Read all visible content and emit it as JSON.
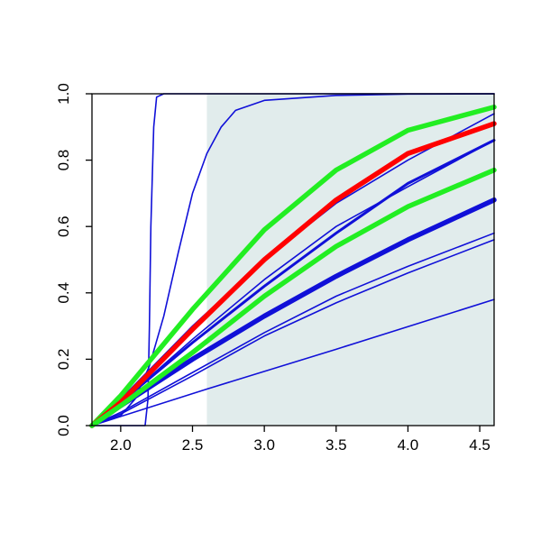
{
  "chart_data": {
    "type": "line",
    "title": "",
    "xlabel": "",
    "ylabel": "",
    "xlim": [
      1.8,
      4.6
    ],
    "ylim": [
      0,
      1
    ],
    "x_ticks": [
      "2.0",
      "2.5",
      "3.0",
      "3.5",
      "4.0",
      "4.5"
    ],
    "y_ticks": [
      "0.0",
      "0.2",
      "0.4",
      "0.6",
      "0.8",
      "1.0"
    ],
    "shaded_region": {
      "x_from": 2.6,
      "x_to": 4.6,
      "color": "#e1ecec"
    },
    "grid": false,
    "legend": "none",
    "colors": {
      "blue": "#1010d8",
      "red": "#ff0000",
      "green": "#22ee22"
    },
    "series": [
      {
        "color": "blue",
        "weight": "thin",
        "points": [
          [
            1.8,
            0
          ],
          [
            2.17,
            0
          ],
          [
            2.19,
            0.08
          ],
          [
            2.2,
            0.3
          ],
          [
            2.21,
            0.6
          ],
          [
            2.23,
            0.9
          ],
          [
            2.25,
            0.99
          ],
          [
            2.3,
            1
          ],
          [
            4.6,
            1
          ]
        ]
      },
      {
        "color": "blue",
        "weight": "thin",
        "points": [
          [
            1.8,
            0
          ],
          [
            2.0,
            0.03
          ],
          [
            2.1,
            0.08
          ],
          [
            2.2,
            0.18
          ],
          [
            2.3,
            0.33
          ],
          [
            2.4,
            0.52
          ],
          [
            2.5,
            0.7
          ],
          [
            2.6,
            0.82
          ],
          [
            2.7,
            0.9
          ],
          [
            2.8,
            0.95
          ],
          [
            3.0,
            0.98
          ],
          [
            3.5,
            0.995
          ],
          [
            4.0,
            0.999
          ],
          [
            4.6,
            1
          ]
        ]
      },
      {
        "color": "blue",
        "weight": "thin",
        "points": [
          [
            1.8,
            0
          ],
          [
            2.0,
            0.08
          ],
          [
            2.5,
            0.3
          ],
          [
            3.0,
            0.5
          ],
          [
            3.5,
            0.67
          ],
          [
            4.0,
            0.8
          ],
          [
            4.6,
            0.94
          ]
        ]
      },
      {
        "color": "blue",
        "weight": "thin",
        "points": [
          [
            1.8,
            0
          ],
          [
            2.0,
            0.07
          ],
          [
            2.5,
            0.26
          ],
          [
            3.0,
            0.44
          ],
          [
            3.5,
            0.6
          ],
          [
            4.0,
            0.72
          ],
          [
            4.6,
            0.86
          ]
        ]
      },
      {
        "color": "blue",
        "weight": "thin",
        "points": [
          [
            1.8,
            0
          ],
          [
            2.0,
            0.04
          ],
          [
            2.5,
            0.16
          ],
          [
            3.0,
            0.28
          ],
          [
            3.5,
            0.39
          ],
          [
            4.0,
            0.48
          ],
          [
            4.6,
            0.58
          ]
        ]
      },
      {
        "color": "blue",
        "weight": "thin",
        "points": [
          [
            1.8,
            0
          ],
          [
            2.0,
            0.035
          ],
          [
            2.5,
            0.15
          ],
          [
            3.0,
            0.27
          ],
          [
            3.5,
            0.37
          ],
          [
            4.0,
            0.46
          ],
          [
            4.6,
            0.56
          ]
        ]
      },
      {
        "color": "blue",
        "weight": "thin",
        "points": [
          [
            1.8,
            0
          ],
          [
            2.6,
            0.11
          ],
          [
            3.5,
            0.23
          ],
          [
            4.6,
            0.38
          ]
        ]
      },
      {
        "color": "blue",
        "weight": "thick",
        "points": [
          [
            1.8,
            0
          ],
          [
            2.0,
            0.07
          ],
          [
            2.5,
            0.25
          ],
          [
            3.0,
            0.42
          ],
          [
            3.5,
            0.58
          ],
          [
            4.0,
            0.73
          ],
          [
            4.6,
            0.86
          ]
        ]
      },
      {
        "color": "blue",
        "weight": "bold",
        "points": [
          [
            1.8,
            0
          ],
          [
            2.0,
            0.06
          ],
          [
            2.5,
            0.2
          ],
          [
            3.0,
            0.33
          ],
          [
            3.5,
            0.45
          ],
          [
            4.0,
            0.56
          ],
          [
            4.6,
            0.68
          ]
        ]
      },
      {
        "color": "green",
        "weight": "bold",
        "points": [
          [
            1.8,
            0
          ],
          [
            2.0,
            0.09
          ],
          [
            2.5,
            0.35
          ],
          [
            3.0,
            0.59
          ],
          [
            3.5,
            0.77
          ],
          [
            4.0,
            0.89
          ],
          [
            4.6,
            0.96
          ]
        ]
      },
      {
        "color": "red",
        "weight": "bold",
        "points": [
          [
            1.8,
            0
          ],
          [
            2.0,
            0.07
          ],
          [
            2.5,
            0.29
          ],
          [
            3.0,
            0.5
          ],
          [
            3.5,
            0.68
          ],
          [
            4.0,
            0.82
          ],
          [
            4.6,
            0.91
          ]
        ]
      },
      {
        "color": "green",
        "weight": "bold",
        "points": [
          [
            1.8,
            0
          ],
          [
            2.0,
            0.06
          ],
          [
            2.5,
            0.22
          ],
          [
            3.0,
            0.39
          ],
          [
            3.5,
            0.54
          ],
          [
            4.0,
            0.66
          ],
          [
            4.6,
            0.77
          ]
        ]
      }
    ]
  }
}
